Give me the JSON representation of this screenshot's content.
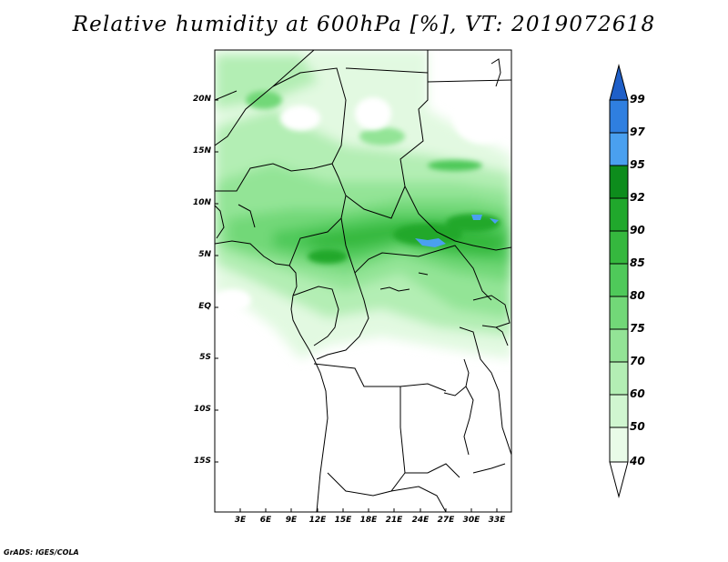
{
  "title": "Relative humidity at 600hPa [%], VT: 2019072618",
  "credit": "GrADS: IGES/COLA",
  "map": {
    "lat_labels": [
      "20N",
      "15N",
      "10N",
      "5N",
      "EQ",
      "5S",
      "10S",
      "15S"
    ],
    "lon_labels": [
      "3E",
      "6E",
      "9E",
      "12E",
      "15E",
      "18E",
      "21E",
      "24E",
      "27E",
      "30E",
      "33E"
    ]
  },
  "colorbar": {
    "labels": [
      "99",
      "97",
      "95",
      "92",
      "90",
      "85",
      "80",
      "75",
      "70",
      "60",
      "50",
      "40"
    ],
    "colors": [
      "#1f5fc8",
      "#2f7fe0",
      "#4aa0ef",
      "#0d8c1c",
      "#20a82c",
      "#35b83e",
      "#4fc95a",
      "#72d878",
      "#93e496",
      "#b3eeb4",
      "#d0f6d0",
      "#e9fbe8",
      "#ffffff"
    ]
  }
}
